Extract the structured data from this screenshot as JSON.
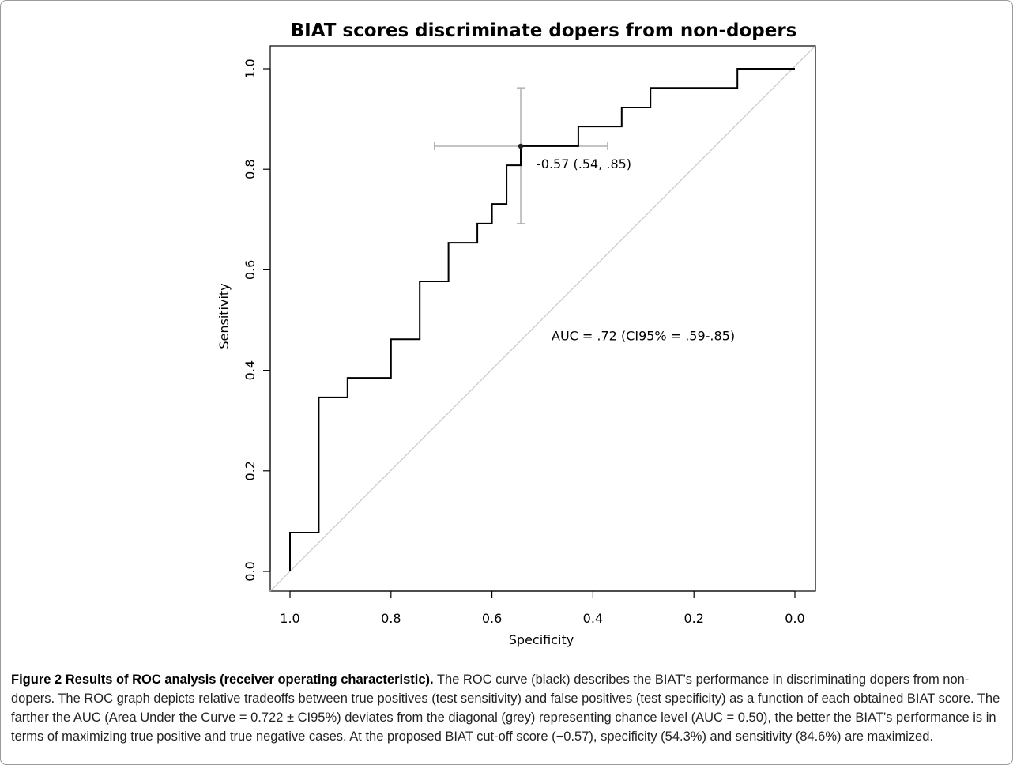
{
  "chart_data": {
    "type": "line",
    "title": "BIAT scores discriminate dopers from non-dopers",
    "xlabel": "Specificity",
    "ylabel": "Sensitivity",
    "xlim": [
      1.0,
      0.0
    ],
    "ylim": [
      0.0,
      1.0
    ],
    "x_reversed": true,
    "x_ticks": [
      "1.0",
      "0.8",
      "0.6",
      "0.4",
      "0.2",
      "0.0"
    ],
    "x_tick_values": [
      1.0,
      0.8,
      0.6,
      0.4,
      0.2,
      0.0
    ],
    "y_ticks": [
      "0.0",
      "0.2",
      "0.4",
      "0.6",
      "0.8",
      "1.0"
    ],
    "y_tick_values": [
      0.0,
      0.2,
      0.4,
      0.6,
      0.8,
      1.0
    ],
    "grid": false,
    "series": [
      {
        "color": "#000000",
        "step": true,
        "points": [
          [
            1.0,
            0.0
          ],
          [
            1.0,
            0.077
          ],
          [
            0.943,
            0.077
          ],
          [
            0.943,
            0.346
          ],
          [
            0.886,
            0.346
          ],
          [
            0.886,
            0.385
          ],
          [
            0.8,
            0.385
          ],
          [
            0.8,
            0.462
          ],
          [
            0.743,
            0.462
          ],
          [
            0.743,
            0.577
          ],
          [
            0.686,
            0.577
          ],
          [
            0.686,
            0.654
          ],
          [
            0.629,
            0.654
          ],
          [
            0.629,
            0.692
          ],
          [
            0.6,
            0.692
          ],
          [
            0.6,
            0.731
          ],
          [
            0.571,
            0.731
          ],
          [
            0.571,
            0.808
          ],
          [
            0.543,
            0.808
          ],
          [
            0.543,
            0.846
          ],
          [
            0.429,
            0.846
          ],
          [
            0.429,
            0.885
          ],
          [
            0.343,
            0.885
          ],
          [
            0.343,
            0.923
          ],
          [
            0.286,
            0.923
          ],
          [
            0.286,
            0.962
          ],
          [
            0.114,
            0.962
          ],
          [
            0.114,
            1.0
          ],
          [
            0.0,
            1.0
          ]
        ]
      }
    ],
    "reference_line": {
      "color": "#c8c8c8",
      "from": [
        1.0,
        0.0
      ],
      "to": [
        0.0,
        1.0
      ]
    },
    "threshold": {
      "point": [
        0.543,
        0.846
      ],
      "label": "-0.57 (.54, .85)",
      "ci_specificity": [
        0.714,
        0.371
      ],
      "ci_sensitivity": [
        0.692,
        0.962
      ],
      "ci_color": "#b0b0b0"
    },
    "auc_label": "AUC = .72 (CI95% = .59-.85)"
  },
  "caption": {
    "title": "Figure 2 Results of ROC analysis (receiver operating characteristic).",
    "text": "The ROC curve (black) describes the BIAT’s performance in discriminating dopers from non-dopers. The ROC graph depicts relative tradeoffs between true positives (test sensitivity) and false positives (test specificity) as a function of each obtained BIAT score. The farther the AUC (Area Under the Curve = 0.722 ± CI95%) deviates from the diagonal (grey) representing chance level (AUC = 0.50), the better the BIAT’s performance is in terms of maximizing true positive and true negative cases. At the proposed BIAT cut-off score (−0.57), specificity (54.3%) and sensitivity (84.6%) are maximized."
  }
}
